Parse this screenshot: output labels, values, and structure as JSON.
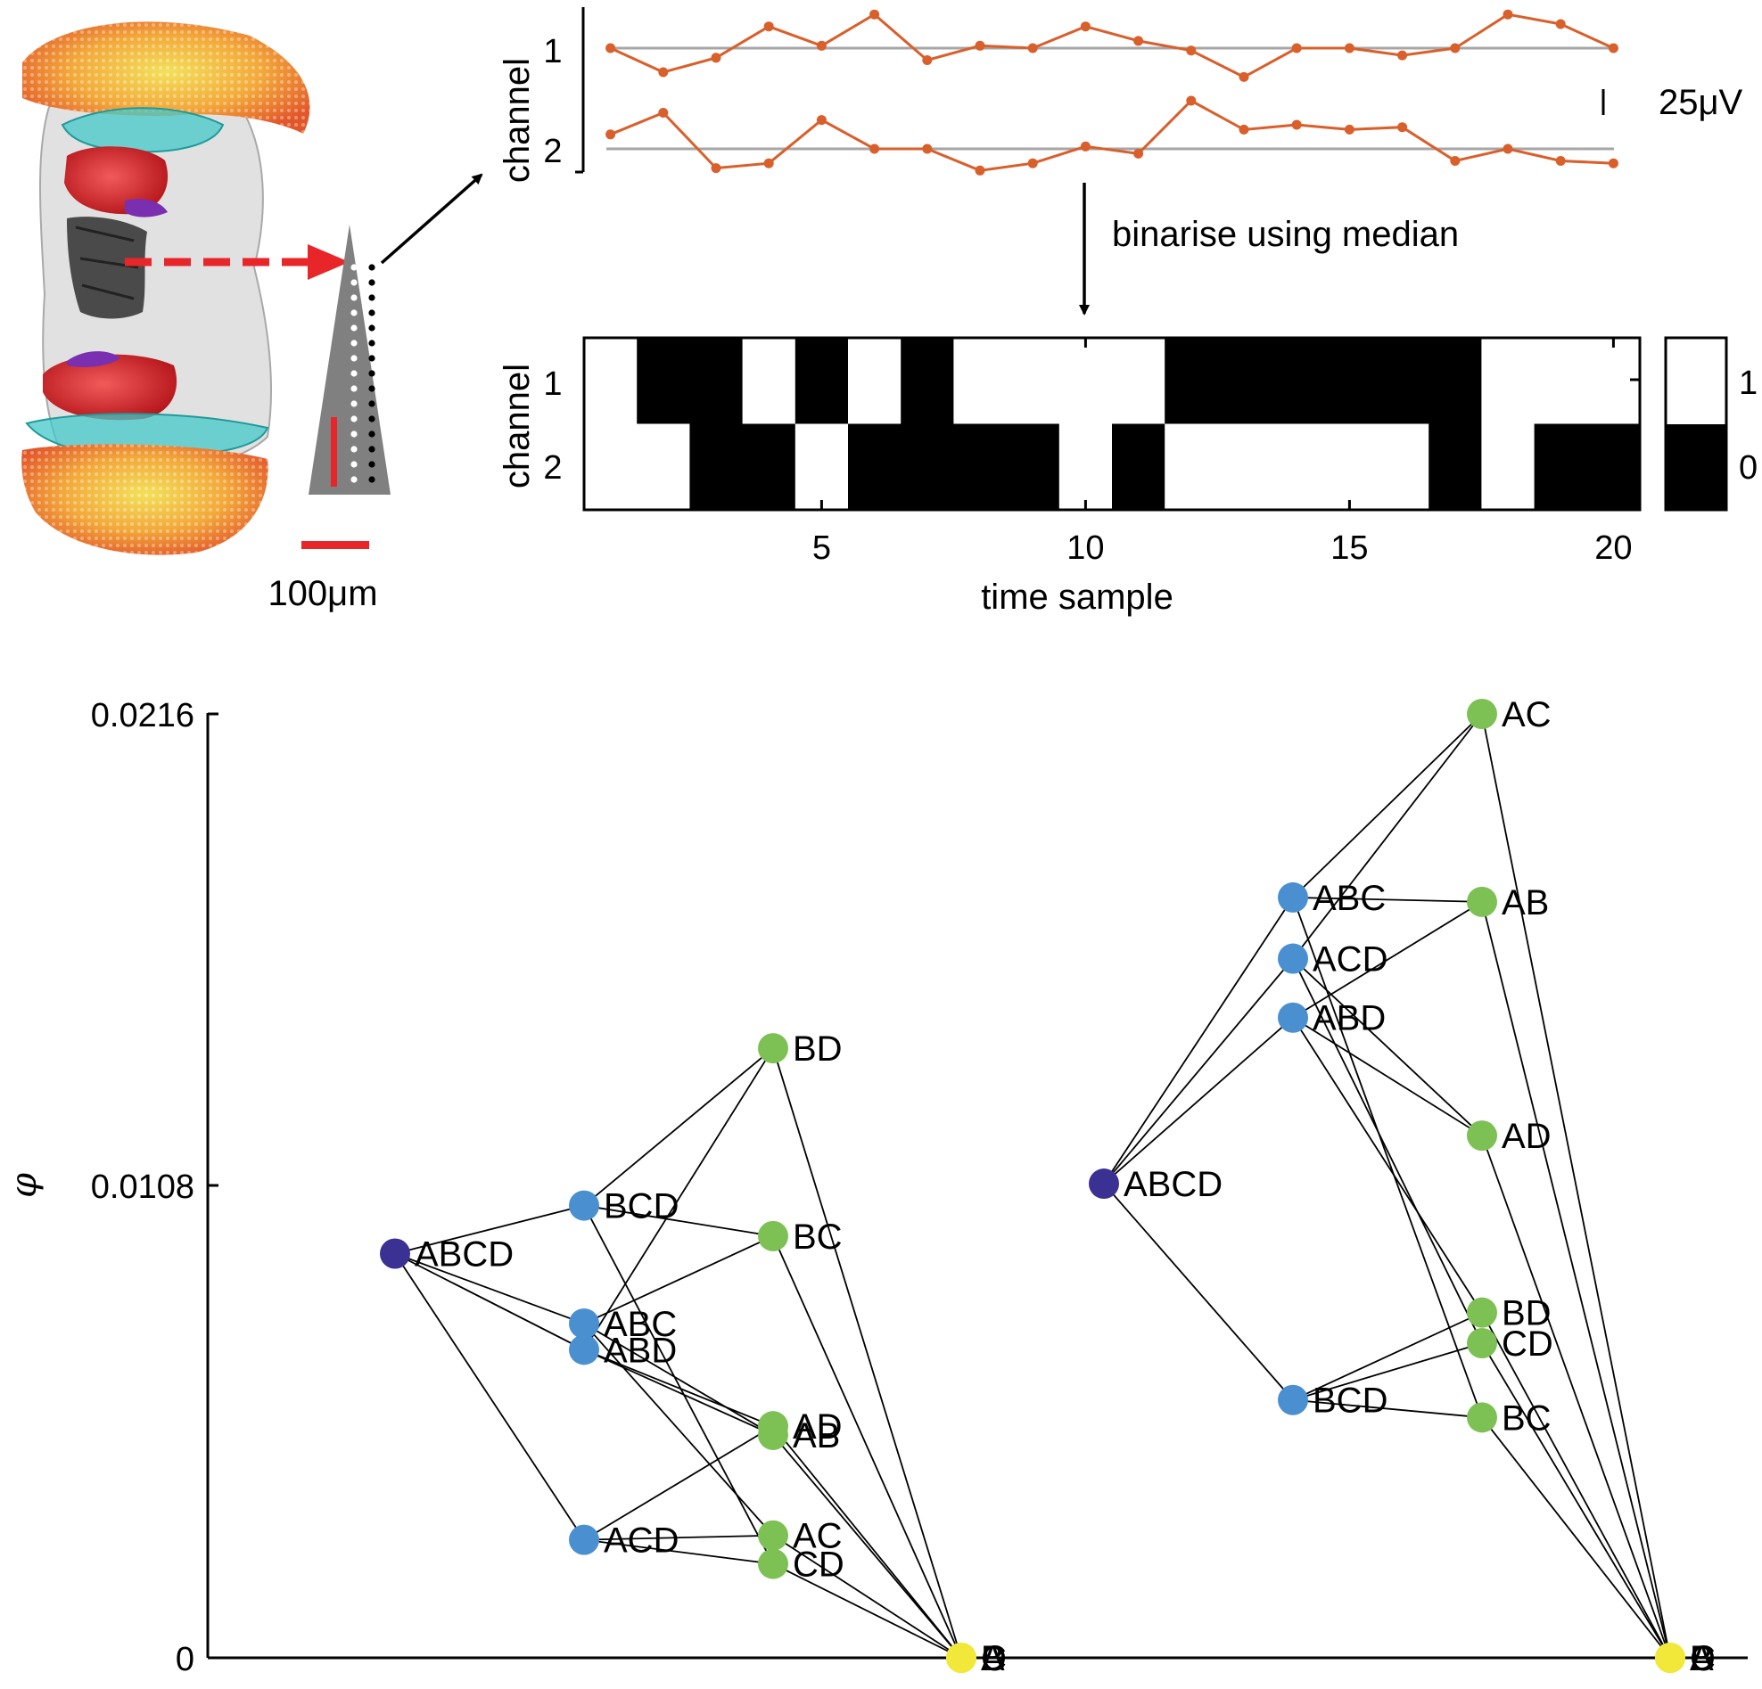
{
  "colors": {
    "trace": "#d95f2b",
    "baseline": "#a6a6a6",
    "arrow_red": "#e8262a",
    "probe": "#808080",
    "node_full": "#3b3193",
    "node_three": "#4a90d0",
    "node_two": "#7dc155",
    "node_empty": "#f1e83a"
  },
  "anatomy": {
    "scale_label": "100μm"
  },
  "traces": {
    "y_axis_label": "channel",
    "channel_labels": [
      "1",
      "2"
    ],
    "scale_label": "25μV",
    "chart_data": {
      "type": "line",
      "x": [
        1,
        2,
        3,
        4,
        5,
        6,
        7,
        8,
        9,
        10,
        11,
        12,
        13,
        14,
        15,
        16,
        17,
        18,
        19,
        20
      ],
      "series": [
        {
          "name": "1",
          "baseline": 0,
          "values": [
            0.0,
            -1.0,
            -0.4,
            0.9,
            0.1,
            1.4,
            -0.5,
            0.1,
            0.0,
            0.9,
            0.3,
            -0.1,
            -1.2,
            0.0,
            0.0,
            -0.3,
            0.0,
            1.4,
            1.0,
            0.0
          ]
        },
        {
          "name": "2",
          "baseline": 0,
          "values": [
            0.6,
            1.5,
            -0.8,
            -0.6,
            1.2,
            0.0,
            0.0,
            -0.9,
            -0.6,
            0.1,
            -0.2,
            2.0,
            0.8,
            1.0,
            0.8,
            0.9,
            -0.5,
            0.0,
            -0.5,
            -0.6
          ]
        }
      ]
    }
  },
  "annotation": {
    "binarise_label": "binarise using median"
  },
  "raster": {
    "y_axis_label": "channel",
    "x_axis_label": "time sample",
    "channel_labels": [
      "1",
      "2"
    ],
    "x_ticks": [
      "5",
      "10",
      "15",
      "20"
    ],
    "colorbar_labels": [
      "1",
      "0"
    ],
    "chart_data": {
      "type": "heatmap",
      "x": [
        1,
        2,
        3,
        4,
        5,
        6,
        7,
        8,
        9,
        10,
        11,
        12,
        13,
        14,
        15,
        16,
        17,
        18,
        19,
        20
      ],
      "rows": [
        {
          "channel": "1",
          "values": [
            0,
            1,
            1,
            0,
            1,
            0,
            1,
            0,
            0,
            0,
            0,
            1,
            1,
            1,
            1,
            1,
            1,
            0,
            0,
            0
          ]
        },
        {
          "channel": "2",
          "values": [
            0,
            0,
            1,
            1,
            0,
            1,
            1,
            1,
            1,
            0,
            1,
            0,
            0,
            0,
            0,
            0,
            1,
            0,
            1,
            1
          ]
        }
      ]
    }
  },
  "lattice": {
    "y_axis_label": "φ",
    "y_ticks": [
      "0.0216",
      "0.0108",
      "0"
    ],
    "chart_data": {
      "type": "scatter",
      "y_axis": "φ",
      "ylim": [
        0,
        0.0216
      ],
      "panels": [
        {
          "nodes": [
            {
              "label": "ABCD",
              "level": "full",
              "phi": 0.00925
            },
            {
              "label": "BCD",
              "level": "three",
              "phi": 0.01035
            },
            {
              "label": "ABC",
              "level": "three",
              "phi": 0.00765
            },
            {
              "label": "ABD",
              "level": "three",
              "phi": 0.00705
            },
            {
              "label": "ACD",
              "level": "three",
              "phi": 0.0027
            },
            {
              "label": "BD",
              "level": "two",
              "phi": 0.01395
            },
            {
              "label": "BC",
              "level": "two",
              "phi": 0.00965
            },
            {
              "label": "AD",
              "level": "two",
              "phi": 0.0053
            },
            {
              "label": "AB",
              "level": "two",
              "phi": 0.0051
            },
            {
              "label": "AC",
              "level": "two",
              "phi": 0.0028
            },
            {
              "label": "CD",
              "level": "two",
              "phi": 0.00215
            },
            {
              "label": "A",
              "level": "empty",
              "phi": 0
            },
            {
              "label": "B",
              "level": "empty",
              "phi": 0
            },
            {
              "label": "C",
              "level": "empty",
              "phi": 0
            },
            {
              "label": "D",
              "level": "empty",
              "phi": 0
            }
          ],
          "edges": [
            [
              "ABCD",
              "BCD"
            ],
            [
              "ABCD",
              "ABC"
            ],
            [
              "ABCD",
              "ABD"
            ],
            [
              "ABCD",
              "ACD"
            ],
            [
              "BCD",
              "BD"
            ],
            [
              "BCD",
              "BC"
            ],
            [
              "BCD",
              "CD"
            ],
            [
              "ABC",
              "BC"
            ],
            [
              "ABC",
              "AB"
            ],
            [
              "ABC",
              "AC"
            ],
            [
              "ABD",
              "BD"
            ],
            [
              "ABD",
              "AB"
            ],
            [
              "ABD",
              "AD"
            ],
            [
              "ACD",
              "AD"
            ],
            [
              "ACD",
              "AC"
            ],
            [
              "ACD",
              "CD"
            ],
            [
              "BD",
              "D"
            ],
            [
              "BC",
              "B"
            ],
            [
              "AD",
              "D"
            ],
            [
              "AB",
              "A"
            ],
            [
              "AC",
              "A"
            ],
            [
              "CD",
              "C"
            ]
          ]
        },
        {
          "nodes": [
            {
              "label": "ABCD",
              "level": "full",
              "phi": 0.01085
            },
            {
              "label": "ABC",
              "level": "three",
              "phi": 0.0174
            },
            {
              "label": "ACD",
              "level": "three",
              "phi": 0.016
            },
            {
              "label": "ABD",
              "level": "three",
              "phi": 0.01465
            },
            {
              "label": "BCD",
              "level": "three",
              "phi": 0.0059
            },
            {
              "label": "AC",
              "level": "two",
              "phi": 0.0216
            },
            {
              "label": "AB",
              "level": "two",
              "phi": 0.0173
            },
            {
              "label": "AD",
              "level": "two",
              "phi": 0.01195
            },
            {
              "label": "BD",
              "level": "two",
              "phi": 0.0079
            },
            {
              "label": "CD",
              "level": "two",
              "phi": 0.0072
            },
            {
              "label": "BC",
              "level": "two",
              "phi": 0.0055
            },
            {
              "label": "A",
              "level": "empty",
              "phi": 0
            },
            {
              "label": "B",
              "level": "empty",
              "phi": 0
            },
            {
              "label": "C",
              "level": "empty",
              "phi": 0
            },
            {
              "label": "D",
              "level": "empty",
              "phi": 0
            }
          ],
          "edges": [
            [
              "ABCD",
              "ABC"
            ],
            [
              "ABCD",
              "ACD"
            ],
            [
              "ABCD",
              "ABD"
            ],
            [
              "ABCD",
              "BCD"
            ],
            [
              "ABC",
              "AC"
            ],
            [
              "ABC",
              "AB"
            ],
            [
              "ABC",
              "BC"
            ],
            [
              "ACD",
              "AC"
            ],
            [
              "ACD",
              "AD"
            ],
            [
              "ACD",
              "CD"
            ],
            [
              "ABD",
              "AB"
            ],
            [
              "ABD",
              "AD"
            ],
            [
              "ABD",
              "BD"
            ],
            [
              "BCD",
              "BD"
            ],
            [
              "BCD",
              "CD"
            ],
            [
              "BCD",
              "BC"
            ],
            [
              "AC",
              "A"
            ],
            [
              "AB",
              "A"
            ],
            [
              "AD",
              "D"
            ],
            [
              "BD",
              "B"
            ],
            [
              "CD",
              "C"
            ],
            [
              "BC",
              "B"
            ]
          ]
        }
      ]
    }
  }
}
